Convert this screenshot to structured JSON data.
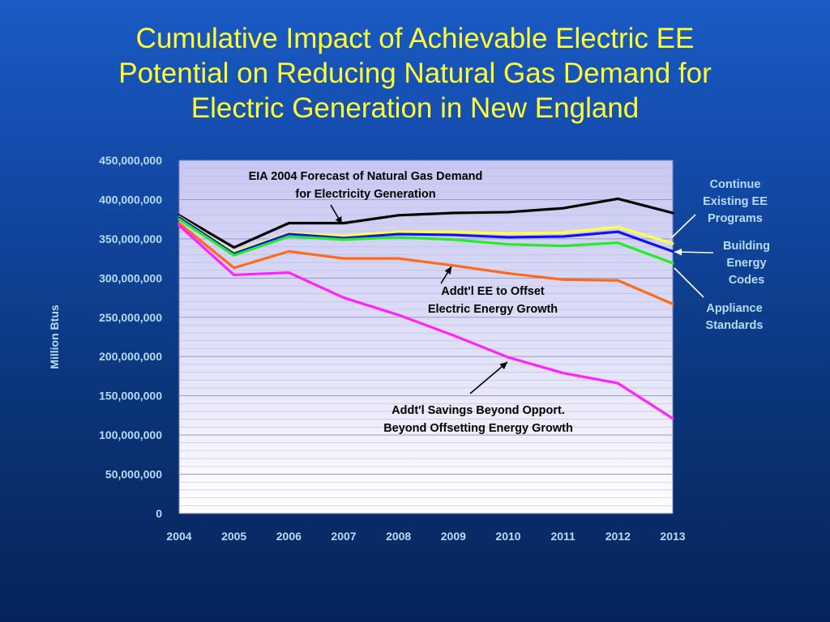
{
  "chart_data": {
    "type": "line",
    "title": "Cumulative Impact of Achievable Electric EE\nPotential on Reducing Natural Gas Demand for\nElectric Generation in New England",
    "ylabel": "Million Btus",
    "xlabel": "",
    "ylim": [
      0,
      450000000
    ],
    "yticks": [
      "0",
      "50,000,000",
      "100,000,000",
      "150,000,000",
      "200,000,000",
      "250,000,000",
      "300,000,000",
      "350,000,000",
      "400,000,000",
      "450,000,000"
    ],
    "categories": [
      "2004",
      "2005",
      "2006",
      "2007",
      "2008",
      "2009",
      "2010",
      "2011",
      "2012",
      "2013"
    ],
    "series": [
      {
        "color": "#000000",
        "values": [
          380000000,
          339000000,
          370000000,
          370000000,
          380000000,
          383000000,
          384000000,
          389000000,
          401000000,
          383000000
        ]
      },
      {
        "color": "#ffff44",
        "values": [
          378000000,
          333000000,
          357000000,
          354000000,
          359000000,
          359000000,
          357000000,
          358000000,
          365000000,
          344000000
        ]
      },
      {
        "color": "#1010ff",
        "values": [
          377000000,
          331000000,
          356000000,
          351000000,
          356000000,
          355000000,
          352000000,
          353000000,
          359000000,
          334000000
        ]
      },
      {
        "color": "#22ee22",
        "values": [
          375000000,
          329000000,
          353000000,
          349000000,
          352000000,
          349000000,
          343000000,
          341000000,
          345000000,
          319000000
        ]
      },
      {
        "color": "#ff6a1a",
        "values": [
          370000000,
          313000000,
          334000000,
          325000000,
          325000000,
          316000000,
          306000000,
          298000000,
          297000000,
          267000000
        ]
      },
      {
        "color": "#ff22ff",
        "values": [
          367000000,
          304000000,
          307000000,
          275000000,
          253000000,
          227000000,
          199000000,
          179000000,
          166000000,
          121000000
        ]
      }
    ],
    "legend_labels": [
      {
        "text": "Continue\nExisting EE\nPrograms"
      },
      {
        "text": "Building\nEnergy\nCodes"
      },
      {
        "text": "Appliance\nStandards"
      }
    ],
    "annotations": [
      {
        "text": "EIA 2004 Forecast of Natural Gas Demand\nfor Electricity Generation"
      },
      {
        "text": "Addt'l EE to Offset\nElectric Energy Growth"
      },
      {
        "text": "Addt'l Savings Beyond Opport.\nBeyond Offsetting Energy Growth"
      }
    ],
    "grid": true,
    "legend": "right"
  }
}
